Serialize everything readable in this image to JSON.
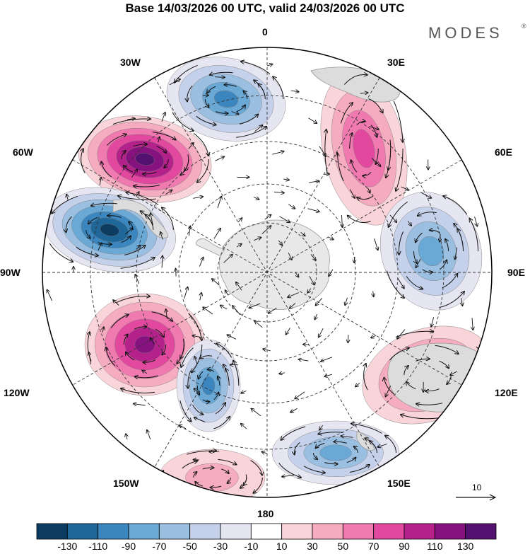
{
  "header": {
    "title": "Base 14/03/2026 00 UTC, valid 24/03/2026 00 UTC"
  },
  "brand": {
    "name": "MODES",
    "mark": "®"
  },
  "map": {
    "projection": "south-polar-stereographic",
    "labels": {
      "top": "0",
      "bottom": "180",
      "left": "90W",
      "right": "90E",
      "upper_left_1": "30W",
      "upper_left_2": "60W",
      "lower_left_1": "120W",
      "lower_left_2": "150W",
      "upper_right_1": "30E",
      "upper_right_2": "60E",
      "lower_right_1": "120E",
      "lower_right_2": "150E"
    },
    "anomaly_centers": [
      {
        "name": "positive-60W",
        "sign": "positive",
        "peak": 130
      },
      {
        "name": "negative-70W",
        "sign": "negative",
        "peak": -130
      },
      {
        "name": "negative-15W",
        "sign": "negative",
        "peak": -90
      },
      {
        "name": "positive-30E",
        "sign": "positive",
        "peak": 70
      },
      {
        "name": "negative-80E",
        "sign": "negative",
        "peak": -70
      },
      {
        "name": "positive-120W",
        "sign": "positive",
        "peak": 110
      },
      {
        "name": "negative-160W",
        "sign": "negative",
        "peak": -90
      },
      {
        "name": "positive-120E",
        "sign": "positive",
        "peak": 70
      },
      {
        "name": "negative-150E",
        "sign": "negative",
        "peak": -70
      },
      {
        "name": "positive-170W",
        "sign": "positive",
        "peak": 30
      }
    ]
  },
  "vector_legend": {
    "value": "10"
  },
  "colorbar": {
    "ticks": [
      "-130",
      "-110",
      "-90",
      "-70",
      "-50",
      "-30",
      "-10",
      "10",
      "30",
      "50",
      "70",
      "90",
      "110",
      "130"
    ],
    "colors": [
      "#0d3c63",
      "#1f6699",
      "#3b86bf",
      "#6aa8d6",
      "#9bbfe0",
      "#c5d1ea",
      "#e6e6f2",
      "#ffffff",
      "#f9d4d9",
      "#f6acc0",
      "#f07ab0",
      "#e2499e",
      "#b5218a",
      "#86127f",
      "#55116f"
    ]
  }
}
